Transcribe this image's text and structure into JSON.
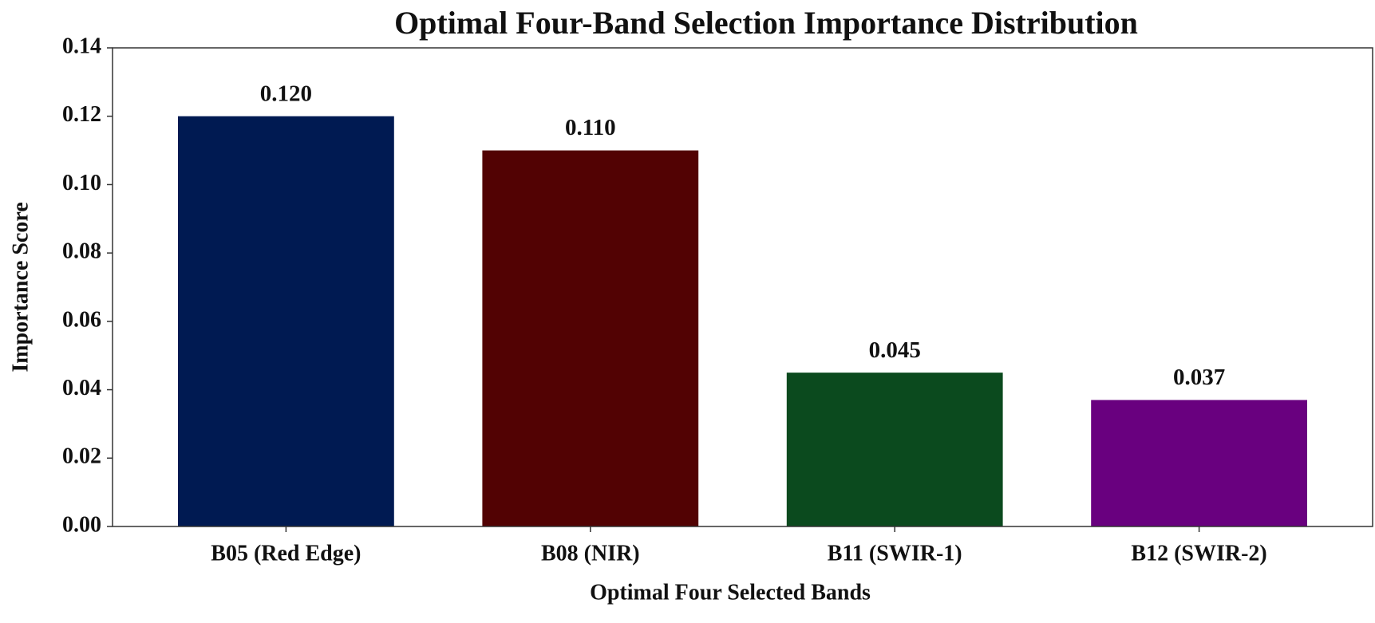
{
  "chart_data": {
    "type": "bar",
    "title": "Optimal Four-Band Selection Importance Distribution",
    "x_label": "Optimal Four Selected Bands",
    "y_label": "Importance Score",
    "categories": [
      "B05 (Red Edge)",
      "B08 (NIR)",
      "B11 (SWIR-1)",
      "B12 (SWIR-2)"
    ],
    "values": [
      0.12,
      0.11,
      0.045,
      0.037
    ],
    "value_labels": [
      "0.120",
      "0.110",
      "0.045",
      "0.037"
    ],
    "colors": [
      "#001a52",
      "#520203",
      "#0b4a1e",
      "#69007f"
    ],
    "ylim": [
      0,
      0.14
    ],
    "yticks": [
      {
        "value": 0,
        "label": "0.00"
      },
      0.02,
      0.04,
      0.06,
      0.08,
      {
        "value": 0.1,
        "label": "0.10"
      },
      0.12,
      0.14
    ],
    "grid": false
  }
}
